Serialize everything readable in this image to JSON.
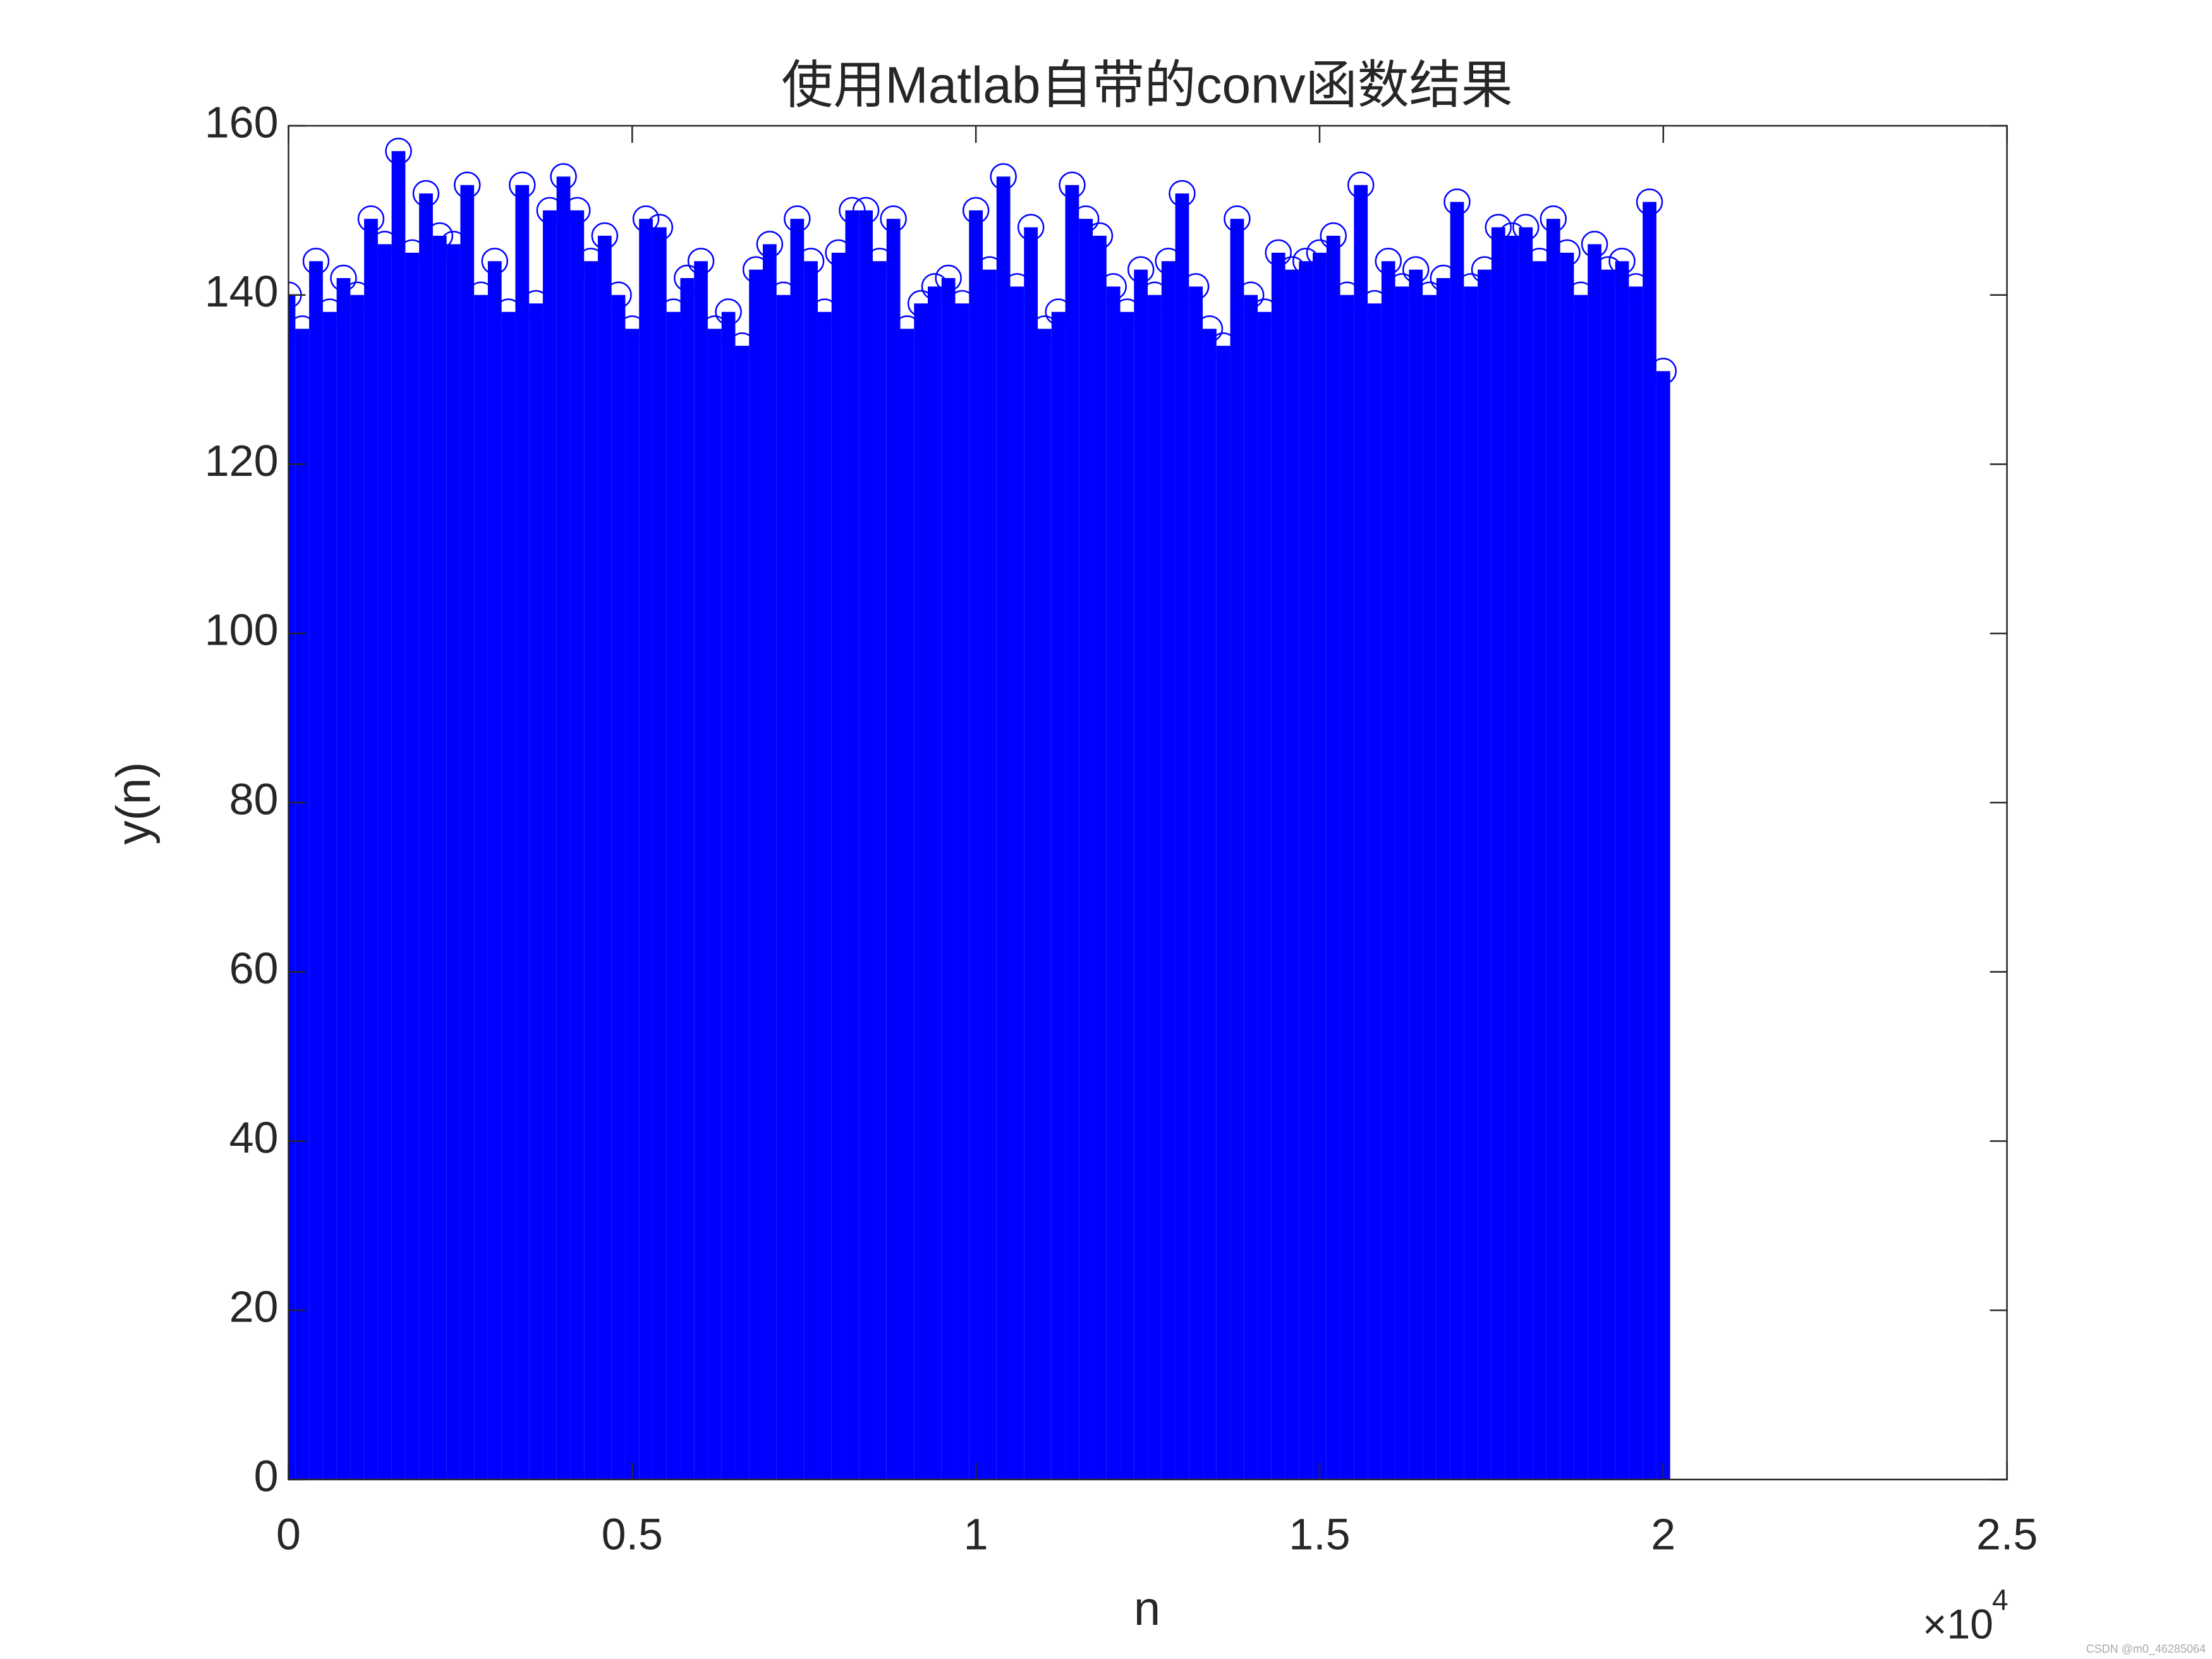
{
  "chart_data": {
    "type": "stem",
    "title": "使用Matlab自带的conv函数结果",
    "x_label": "n",
    "y_label": "y(n)",
    "x_multiplier": "×10",
    "x_exponent": "4",
    "watermark": "CSDN @m0_46285064",
    "color": "#0000ff",
    "grid": false,
    "xlim": [
      0,
      2.5
    ],
    "xticks": [
      0,
      0.5,
      1,
      1.5,
      2,
      2.5
    ],
    "ylim": [
      0,
      160
    ],
    "yticks": [
      0,
      20,
      40,
      60,
      80,
      100,
      120,
      140,
      160
    ],
    "x": [
      0,
      0.02,
      0.04,
      0.06,
      0.08,
      0.1,
      0.12,
      0.14,
      0.16,
      0.18,
      0.2,
      0.22,
      0.24,
      0.26,
      0.28,
      0.3,
      0.32,
      0.34,
      0.36,
      0.38,
      0.4,
      0.42,
      0.44,
      0.46,
      0.48,
      0.5,
      0.52,
      0.54,
      0.56,
      0.58,
      0.6,
      0.62,
      0.64,
      0.66,
      0.68,
      0.7,
      0.72,
      0.74,
      0.76,
      0.78,
      0.8,
      0.82,
      0.84,
      0.86,
      0.88,
      0.9,
      0.92,
      0.94,
      0.96,
      0.98,
      1,
      1.02,
      1.04,
      1.06,
      1.08,
      1.1,
      1.12,
      1.14,
      1.16,
      1.18,
      1.2,
      1.22,
      1.24,
      1.26,
      1.28,
      1.3,
      1.32,
      1.34,
      1.36,
      1.38,
      1.4,
      1.42,
      1.44,
      1.46,
      1.48,
      1.5,
      1.52,
      1.54,
      1.56,
      1.58,
      1.6,
      1.62,
      1.64,
      1.66,
      1.68,
      1.7,
      1.72,
      1.74,
      1.76,
      1.78,
      1.8,
      1.82,
      1.84,
      1.86,
      1.88,
      1.9,
      1.92,
      1.94,
      1.96,
      1.98,
      2
    ],
    "values": [
      140,
      136,
      144,
      138,
      142,
      140,
      149,
      146,
      157,
      145,
      152,
      147,
      146,
      153,
      140,
      144,
      138,
      153,
      139,
      150,
      154,
      150,
      144,
      147,
      140,
      136,
      149,
      148,
      138,
      142,
      144,
      136,
      138,
      134,
      143,
      146,
      140,
      149,
      144,
      138,
      145,
      150,
      150,
      144,
      149,
      136,
      139,
      141,
      142,
      139,
      150,
      143,
      154,
      141,
      148,
      136,
      138,
      153,
      149,
      147,
      141,
      138,
      143,
      140,
      144,
      152,
      141,
      136,
      134,
      149,
      140,
      138,
      145,
      143,
      144,
      145,
      147,
      140,
      153,
      139,
      144,
      141,
      143,
      140,
      142,
      151,
      141,
      143,
      148,
      147,
      148,
      144,
      149,
      145,
      140,
      146,
      143,
      144,
      141,
      151,
      131
    ]
  }
}
